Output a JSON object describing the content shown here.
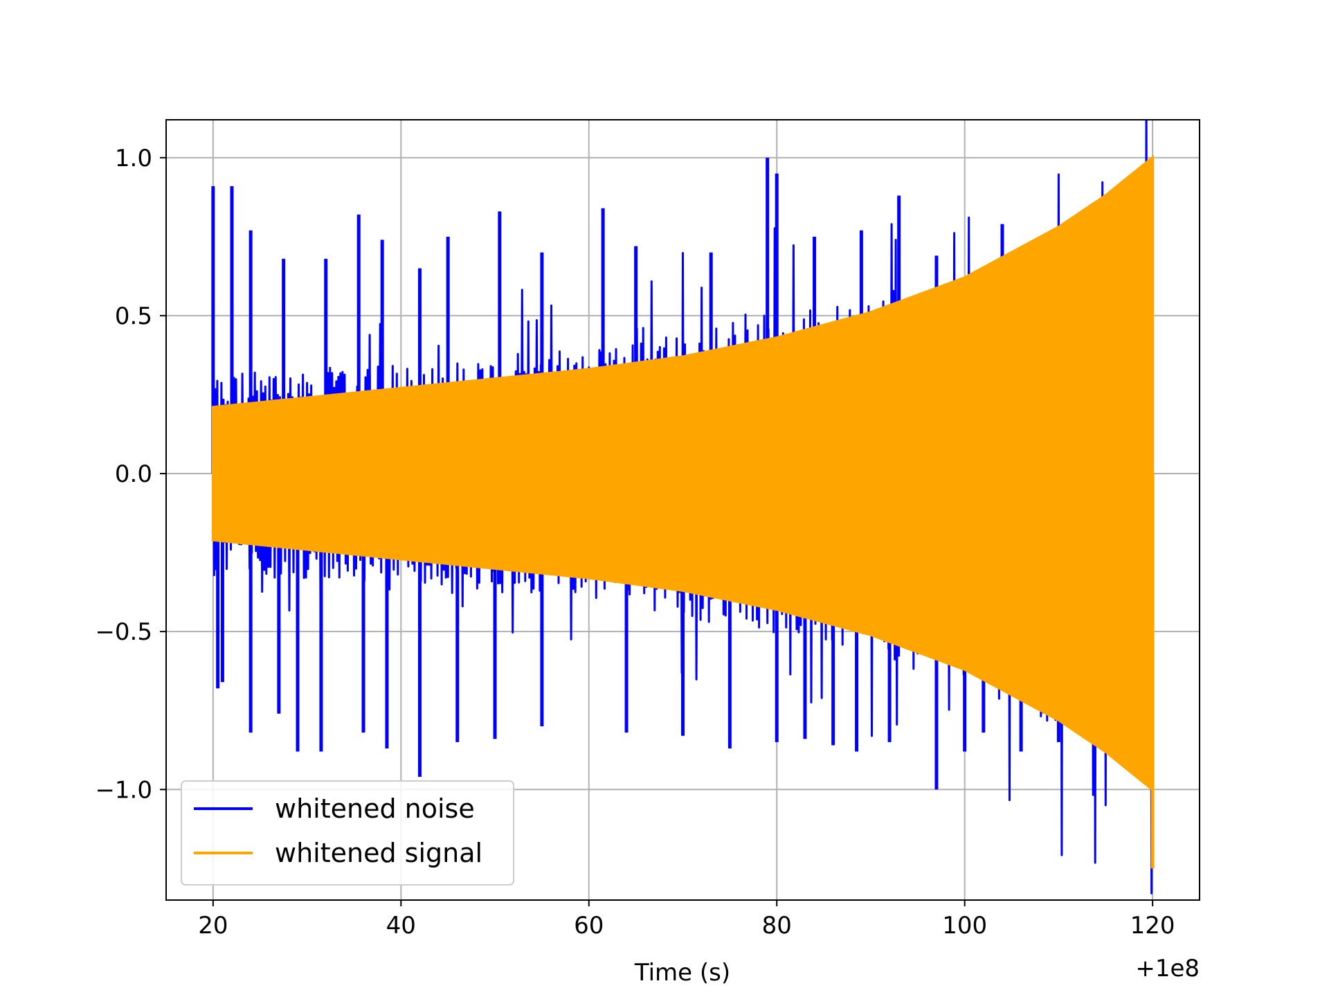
{
  "chart_data": {
    "type": "line",
    "title": "",
    "xlabel": "Time (s)",
    "ylabel": "",
    "x_offset_label": "+1e8",
    "xlim": [
      15,
      125
    ],
    "ylim": [
      -1.35,
      1.12
    ],
    "xticks": [
      20,
      40,
      60,
      80,
      100,
      120
    ],
    "xtick_labels": [
      "20",
      "40",
      "60",
      "80",
      "100",
      "120"
    ],
    "yticks": [
      1.0,
      0.5,
      0.0,
      -0.5,
      -1.0
    ],
    "ytick_labels": [
      "1.0",
      "0.5",
      "0.0",
      "−0.5",
      "−1.0"
    ],
    "grid": true,
    "legend_position": "lower-left",
    "series": [
      {
        "name": "whitened noise",
        "color": "#0000ff",
        "x_range": [
          20,
          120
        ],
        "envelope": [
          {
            "x": 20,
            "upper": 0.28,
            "lower": -0.28
          },
          {
            "x": 40,
            "upper": 0.3,
            "lower": -0.3
          },
          {
            "x": 60,
            "upper": 0.35,
            "lower": -0.35
          },
          {
            "x": 80,
            "upper": 0.45,
            "lower": -0.45
          },
          {
            "x": 100,
            "upper": 0.5,
            "lower": -0.55
          },
          {
            "x": 120,
            "upper": 0.7,
            "lower": -0.85
          }
        ],
        "peaks": [
          {
            "x": 20.0,
            "y": 0.91
          },
          {
            "x": 22.0,
            "y": 0.91
          },
          {
            "x": 24.0,
            "y": 0.77
          },
          {
            "x": 27.5,
            "y": 0.68
          },
          {
            "x": 32.0,
            "y": 0.68
          },
          {
            "x": 35.5,
            "y": 0.82
          },
          {
            "x": 38.0,
            "y": 0.74
          },
          {
            "x": 42.0,
            "y": 0.65
          },
          {
            "x": 45.0,
            "y": 0.75
          },
          {
            "x": 50.5,
            "y": 0.83
          },
          {
            "x": 55.0,
            "y": 0.7
          },
          {
            "x": 61.5,
            "y": 0.84
          },
          {
            "x": 65.0,
            "y": 0.72
          },
          {
            "x": 73.0,
            "y": 0.7
          },
          {
            "x": 79.0,
            "y": 1.0
          },
          {
            "x": 80.0,
            "y": 0.95
          },
          {
            "x": 84.0,
            "y": 0.75
          },
          {
            "x": 89.0,
            "y": 0.77
          },
          {
            "x": 93.0,
            "y": 0.88
          },
          {
            "x": 97.0,
            "y": 0.69
          },
          {
            "x": 104.0,
            "y": 0.79
          },
          {
            "x": 109.0,
            "y": 0.75
          }
        ],
        "troughs": [
          {
            "x": 20.5,
            "y": -0.68
          },
          {
            "x": 21.0,
            "y": -0.66
          },
          {
            "x": 24.0,
            "y": -0.82
          },
          {
            "x": 27.0,
            "y": -0.76
          },
          {
            "x": 29.0,
            "y": -0.88
          },
          {
            "x": 31.5,
            "y": -0.88
          },
          {
            "x": 36.0,
            "y": -0.82
          },
          {
            "x": 38.5,
            "y": -0.87
          },
          {
            "x": 42.0,
            "y": -0.96
          },
          {
            "x": 46.0,
            "y": -0.85
          },
          {
            "x": 50.0,
            "y": -0.84
          },
          {
            "x": 55.0,
            "y": -0.8
          },
          {
            "x": 64.0,
            "y": -0.82
          },
          {
            "x": 70.0,
            "y": -0.83
          },
          {
            "x": 75.0,
            "y": -0.87
          },
          {
            "x": 80.0,
            "y": -0.85
          },
          {
            "x": 83.0,
            "y": -0.84
          },
          {
            "x": 86.0,
            "y": -0.86
          },
          {
            "x": 88.5,
            "y": -0.88
          },
          {
            "x": 92.0,
            "y": -0.85
          },
          {
            "x": 97.0,
            "y": -1.0
          },
          {
            "x": 100.0,
            "y": -0.88
          },
          {
            "x": 102.0,
            "y": -0.82
          },
          {
            "x": 106.0,
            "y": -0.88
          },
          {
            "x": 110.0,
            "y": -0.85
          },
          {
            "x": 113.0,
            "y": -0.84
          }
        ]
      },
      {
        "name": "whitened signal",
        "color": "#ffa500",
        "x_range": [
          20,
          120
        ],
        "envelope": [
          {
            "x": 20,
            "upper": 0.21,
            "lower": -0.21
          },
          {
            "x": 30,
            "upper": 0.24,
            "lower": -0.24
          },
          {
            "x": 40,
            "upper": 0.27,
            "lower": -0.27
          },
          {
            "x": 50,
            "upper": 0.3,
            "lower": -0.3
          },
          {
            "x": 60,
            "upper": 0.33,
            "lower": -0.33
          },
          {
            "x": 70,
            "upper": 0.37,
            "lower": -0.37
          },
          {
            "x": 80,
            "upper": 0.43,
            "lower": -0.43
          },
          {
            "x": 90,
            "upper": 0.51,
            "lower": -0.51
          },
          {
            "x": 100,
            "upper": 0.62,
            "lower": -0.62
          },
          {
            "x": 110,
            "upper": 0.78,
            "lower": -0.78
          },
          {
            "x": 115,
            "upper": 0.88,
            "lower": -0.88
          },
          {
            "x": 120,
            "upper": 1.0,
            "lower": -1.0
          }
        ],
        "min_spike": {
          "x": 120,
          "y": -1.25
        }
      }
    ]
  }
}
